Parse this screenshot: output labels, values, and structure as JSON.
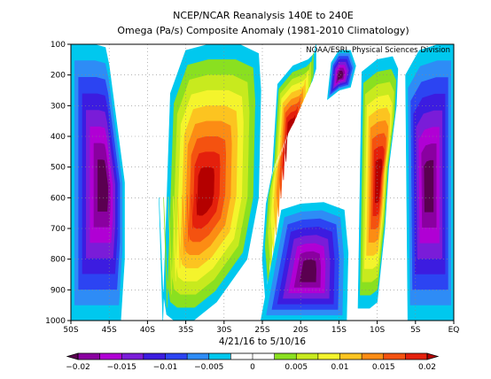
{
  "chart_data": {
    "type": "heatmap",
    "title": "NCEP/NCAR Reanalysis 140E to 240E",
    "subtitle": "Omega (Pa/s) Composite Anomaly (1981-2010 Climatology)",
    "credit": "NOAA/ESRL Physical Sciences Division",
    "xlabel": "4/21/16  to 5/10/16",
    "ylabel": "",
    "x_ticks": [
      {
        "lat": -50,
        "label": "50S"
      },
      {
        "lat": -45,
        "label": "45S"
      },
      {
        "lat": -40,
        "label": "40S"
      },
      {
        "lat": -35,
        "label": "35S"
      },
      {
        "lat": -30,
        "label": "30S"
      },
      {
        "lat": -25,
        "label": "25S"
      },
      {
        "lat": -20,
        "label": "20S"
      },
      {
        "lat": -15,
        "label": "15S"
      },
      {
        "lat": -10,
        "label": "10S"
      },
      {
        "lat": -5,
        "label": "5S"
      },
      {
        "lat": 0,
        "label": "EQ"
      }
    ],
    "xlim": [
      -50,
      0
    ],
    "y_ticks": [
      100,
      200,
      300,
      400,
      500,
      600,
      700,
      800,
      900,
      1000
    ],
    "ylim": [
      1000,
      100
    ],
    "grid": true,
    "colorbar": {
      "ticks": [
        {
          "value": -0.02,
          "label": "−0.02"
        },
        {
          "value": -0.015,
          "label": "−0.015"
        },
        {
          "value": -0.01,
          "label": "−0.01"
        },
        {
          "value": -0.005,
          "label": "−0.005"
        },
        {
          "value": 0,
          "label": "0"
        },
        {
          "value": 0.005,
          "label": "0.005"
        },
        {
          "value": 0.01,
          "label": "0.01"
        },
        {
          "value": 0.015,
          "label": "0.015"
        },
        {
          "value": 0.02,
          "label": "0.02"
        }
      ],
      "colors": [
        "#5a0050",
        "#8a00a0",
        "#b000d4",
        "#7a1cd8",
        "#3c1ce0",
        "#2c44f2",
        "#2e8cf6",
        "#00c8ee",
        "#ffffff",
        "#ffffff",
        "#8ae020",
        "#c8ea1e",
        "#f4f42c",
        "#fcc420",
        "#fc8c14",
        "#f45210",
        "#e4200c",
        "#b40000"
      ]
    },
    "features": [
      {
        "type": "field",
        "sign": "positive",
        "lat": [
          -38,
          -37,
          -35,
          -32,
          -28,
          -25.5,
          -25.2,
          -25.5,
          -27,
          -31,
          -34,
          -36.5,
          -37.5,
          -38,
          -38.5
        ],
        "lev": [
          1000,
          260,
          120,
          100,
          100,
          130,
          250,
          600,
          800,
          940,
          1000,
          1000,
          980,
          900,
          600
        ]
      },
      {
        "type": "field",
        "sign": "positive",
        "lat": [
          -24,
          -23,
          -21,
          -19,
          -18.2,
          -18,
          -18,
          -18.5,
          -21,
          -23,
          -24.5,
          -25,
          -24.5
        ],
        "lev": [
          640,
          230,
          170,
          150,
          130,
          100,
          180,
          220,
          330,
          430,
          620,
          800,
          960
        ]
      },
      {
        "type": "field",
        "sign": "positive",
        "lat": [
          -12.5,
          -12,
          -10,
          -8,
          -7.3,
          -7.5,
          -8.5,
          -9,
          -10,
          -11,
          -12
        ],
        "lev": [
          960,
          190,
          150,
          140,
          180,
          300,
          500,
          700,
          940,
          960,
          960
        ]
      },
      {
        "type": "field",
        "sign": "negative",
        "lat": [
          -50,
          -50,
          -47,
          -45.5,
          -45,
          -44,
          -43,
          -43,
          -43.5,
          -45,
          -46.5
        ],
        "lev": [
          1000,
          100,
          100,
          110,
          170,
          360,
          550,
          800,
          1000,
          1000,
          1000
        ]
      },
      {
        "type": "field",
        "sign": "negative",
        "lat": [
          -25.2,
          -22.5,
          -20,
          -17,
          -14.3,
          -13.8,
          -14,
          -16,
          -19,
          -22,
          -24.5
        ],
        "lev": [
          1000,
          640,
          620,
          615,
          640,
          780,
          1000,
          1000,
          1000,
          1000,
          1000
        ]
      },
      {
        "type": "field",
        "sign": "negative",
        "lat": [
          -6,
          -6.3,
          -4.5,
          -2,
          0,
          0,
          -2.5,
          -5
        ],
        "lev": [
          1000,
          200,
          120,
          100,
          100,
          1000,
          1000,
          1000
        ]
      },
      {
        "type": "field",
        "sign": "negative",
        "lat": [
          -16.5,
          -16,
          -15,
          -13.5,
          -12.8,
          -13.5,
          -15,
          -16.5
        ],
        "lev": [
          280,
          160,
          120,
          120,
          170,
          240,
          250,
          280
        ]
      }
    ]
  }
}
